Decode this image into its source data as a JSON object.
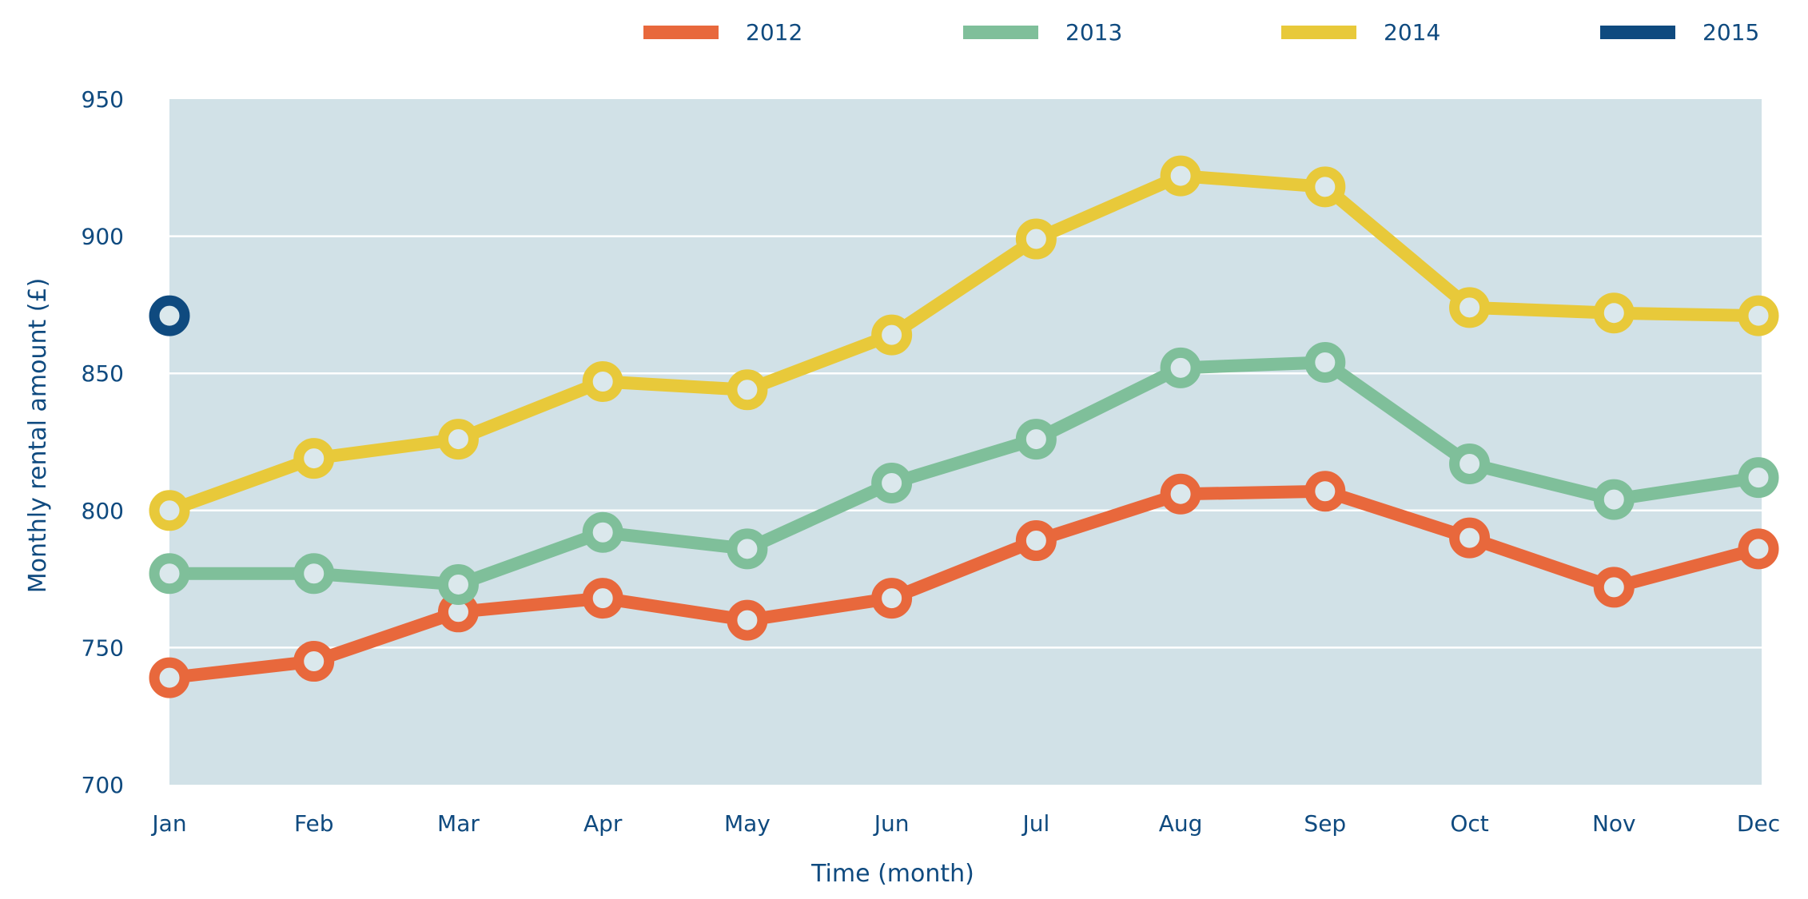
{
  "chart_data": {
    "type": "line",
    "title": "",
    "xlabel": "Time (month)",
    "ylabel": "Monthly rental amount (£)",
    "categories": [
      "Jan",
      "Feb",
      "Mar",
      "Apr",
      "May",
      "Jun",
      "Jul",
      "Aug",
      "Sep",
      "Oct",
      "Nov",
      "Dec"
    ],
    "ylim": [
      700,
      950
    ],
    "yticks": [
      "700",
      "750",
      "800",
      "850",
      "900",
      "950"
    ],
    "grid": true,
    "legend_position": "top",
    "series": [
      {
        "name": "2012",
        "color": "#e8683c",
        "values": [
          739,
          745,
          763,
          768,
          760,
          768,
          789,
          806,
          807,
          790,
          772,
          786
        ]
      },
      {
        "name": "2013",
        "color": "#7fbf9a",
        "values": [
          777,
          777,
          773,
          792,
          786,
          810,
          826,
          852,
          854,
          817,
          804,
          812
        ]
      },
      {
        "name": "2014",
        "color": "#e8c93a",
        "values": [
          800,
          819,
          826,
          847,
          844,
          864,
          899,
          922,
          918,
          874,
          872,
          871
        ]
      },
      {
        "name": "2015",
        "color": "#0f4a7f",
        "values": [
          871,
          null,
          null,
          null,
          null,
          null,
          null,
          null,
          null,
          null,
          null,
          null
        ]
      }
    ]
  }
}
